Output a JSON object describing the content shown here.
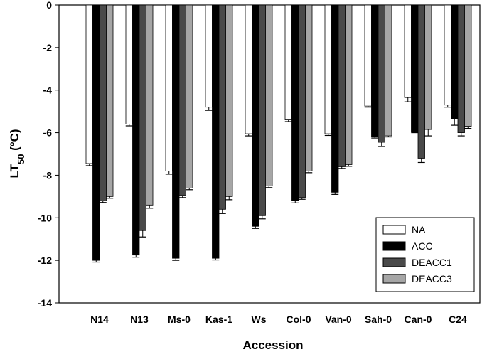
{
  "chart_data": {
    "type": "bar",
    "title": "",
    "xlabel": "Accession",
    "ylabel": {
      "main": "LT",
      "sub": "50",
      "unit": " (°C)"
    },
    "ylim": [
      -14,
      0
    ],
    "yticks": [
      0,
      -2,
      -4,
      -6,
      -8,
      -10,
      -12,
      -14
    ],
    "ytick_labels": [
      "0",
      "-2",
      "-4",
      "-6",
      "-8",
      "-10",
      "-12",
      "-14"
    ],
    "grid": false,
    "legend_position": "bottom-right",
    "categories": [
      "N14",
      "N13",
      "Ms-0",
      "Kas-1",
      "Ws",
      "Col-0",
      "Van-0",
      "Sah-0",
      "Can-0",
      "C24"
    ],
    "series": [
      {
        "name": "NA",
        "color": "#ffffff",
        "values": [
          -7.45,
          -5.6,
          -7.8,
          -4.8,
          -6.05,
          -5.4,
          -6.05,
          -4.75,
          -4.35,
          -4.7
        ],
        "errors": [
          0.1,
          0.08,
          0.15,
          0.15,
          0.1,
          0.08,
          0.08,
          0.05,
          0.2,
          0.1
        ]
      },
      {
        "name": "ACC",
        "color": "#000000",
        "values": [
          -12.0,
          -11.75,
          -11.9,
          -11.9,
          -10.4,
          -9.2,
          -8.8,
          -6.2,
          -5.95,
          -5.35
        ],
        "errors": [
          0.08,
          0.1,
          0.1,
          0.08,
          0.1,
          0.1,
          0.1,
          0.05,
          0.05,
          0.3
        ]
      },
      {
        "name": "DEACC1",
        "color": "#4a4a4a",
        "values": [
          -9.2,
          -10.6,
          -8.95,
          -9.6,
          -9.9,
          -9.05,
          -7.6,
          -6.45,
          -7.2,
          -6.0
        ],
        "errors": [
          0.08,
          0.3,
          0.1,
          0.2,
          0.15,
          0.08,
          0.08,
          0.2,
          0.2,
          0.15
        ]
      },
      {
        "name": "DEACC3",
        "color": "#a6a6a6",
        "values": [
          -9.0,
          -9.4,
          -8.6,
          -9.0,
          -8.5,
          -7.8,
          -7.5,
          -6.15,
          -5.85,
          -5.7
        ],
        "errors": [
          0.08,
          0.15,
          0.08,
          0.15,
          0.08,
          0.08,
          0.08,
          0.05,
          0.3,
          0.1
        ]
      }
    ]
  }
}
